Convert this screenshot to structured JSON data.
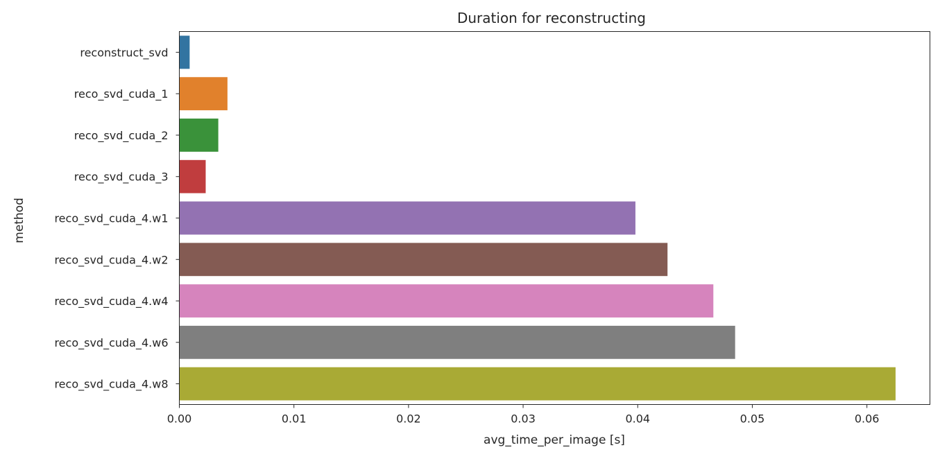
{
  "chart_data": {
    "type": "bar",
    "orientation": "horizontal",
    "title": "Duration for reconstructing",
    "xlabel": "avg_time_per_image [s]",
    "ylabel": "method",
    "xlim": [
      0,
      0.0655
    ],
    "xticks": [
      "0.00",
      "0.01",
      "0.02",
      "0.03",
      "0.04",
      "0.05",
      "0.06"
    ],
    "xtick_values": [
      0,
      0.01,
      0.02,
      0.03,
      0.04,
      0.05,
      0.06
    ],
    "grid": false,
    "categories": [
      "reconstruct_svd",
      "reco_svd_cuda_1",
      "reco_svd_cuda_2",
      "reco_svd_cuda_3",
      "reco_svd_cuda_4.w1",
      "reco_svd_cuda_4.w2",
      "reco_svd_cuda_4.w4",
      "reco_svd_cuda_4.w6",
      "reco_svd_cuda_4.w8"
    ],
    "values": [
      0.0009,
      0.0042,
      0.0034,
      0.0023,
      0.0398,
      0.0426,
      0.0466,
      0.0485,
      0.0625
    ],
    "colors": [
      "#3274a1",
      "#e1812c",
      "#3a923a",
      "#c03d3e",
      "#9372b2",
      "#845b53",
      "#d684bd",
      "#7f7f7f",
      "#a9aa35"
    ]
  }
}
